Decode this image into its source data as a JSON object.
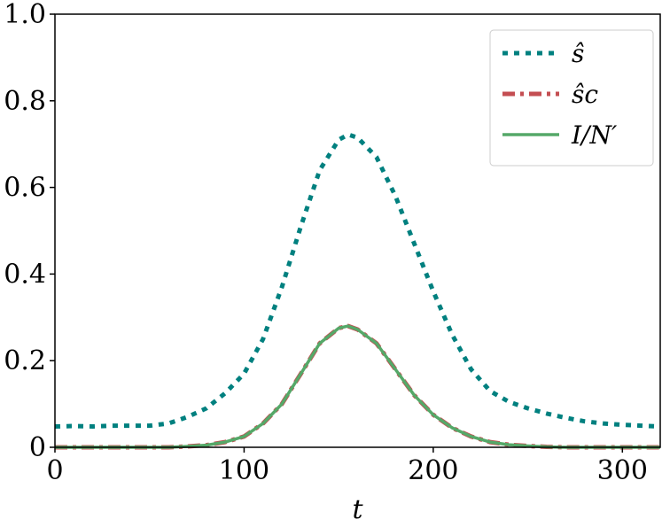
{
  "chart_data": {
    "type": "line",
    "xlabel": "t",
    "ylabel": "",
    "xlim": [
      0,
      320
    ],
    "ylim": [
      0,
      1.0
    ],
    "x_ticks": [
      0,
      100,
      200,
      300
    ],
    "x_tick_labels": [
      "0",
      "100",
      "200",
      "300"
    ],
    "y_ticks": [
      0,
      0.2,
      0.4,
      0.6,
      0.8,
      1.0
    ],
    "y_tick_labels": [
      "0",
      "0.2",
      "0.4",
      "0.6",
      "0.8",
      "1.0"
    ],
    "grid": false,
    "legend": "top-right",
    "x": [
      0,
      10,
      20,
      30,
      40,
      50,
      60,
      70,
      80,
      90,
      100,
      110,
      120,
      130,
      140,
      150,
      155,
      160,
      170,
      180,
      190,
      200,
      210,
      220,
      230,
      240,
      250,
      260,
      270,
      280,
      290,
      300,
      310,
      320
    ],
    "series": [
      {
        "name": "ŝ",
        "style": "dotted",
        "color": "#00807f",
        "values": [
          0.048,
          0.049,
          0.048,
          0.05,
          0.05,
          0.05,
          0.055,
          0.07,
          0.09,
          0.125,
          0.17,
          0.25,
          0.37,
          0.51,
          0.64,
          0.71,
          0.722,
          0.715,
          0.67,
          0.58,
          0.47,
          0.36,
          0.26,
          0.18,
          0.13,
          0.105,
          0.09,
          0.078,
          0.068,
          0.06,
          0.055,
          0.052,
          0.05,
          0.048
        ]
      },
      {
        "name": "ŝc",
        "style": "dashdot",
        "color": "#c44e52",
        "values": [
          0.0,
          0.0,
          0.0,
          0.0,
          0.0,
          0.0,
          0.0,
          0.002,
          0.005,
          0.012,
          0.025,
          0.055,
          0.1,
          0.17,
          0.24,
          0.275,
          0.28,
          0.272,
          0.24,
          0.18,
          0.12,
          0.075,
          0.045,
          0.025,
          0.012,
          0.006,
          0.003,
          0.001,
          0.0,
          0.0,
          0.0,
          0.0,
          0.0,
          0.0
        ]
      },
      {
        "name": "I/N′",
        "style": "solid",
        "color": "#55a868",
        "values": [
          0.0,
          0.0,
          0.0,
          0.0,
          0.0,
          0.0,
          0.0,
          0.002,
          0.005,
          0.012,
          0.025,
          0.055,
          0.1,
          0.17,
          0.24,
          0.275,
          0.28,
          0.272,
          0.24,
          0.18,
          0.12,
          0.075,
          0.045,
          0.025,
          0.012,
          0.006,
          0.003,
          0.001,
          0.0,
          0.0,
          0.0,
          0.0,
          0.0,
          0.0
        ]
      }
    ]
  }
}
